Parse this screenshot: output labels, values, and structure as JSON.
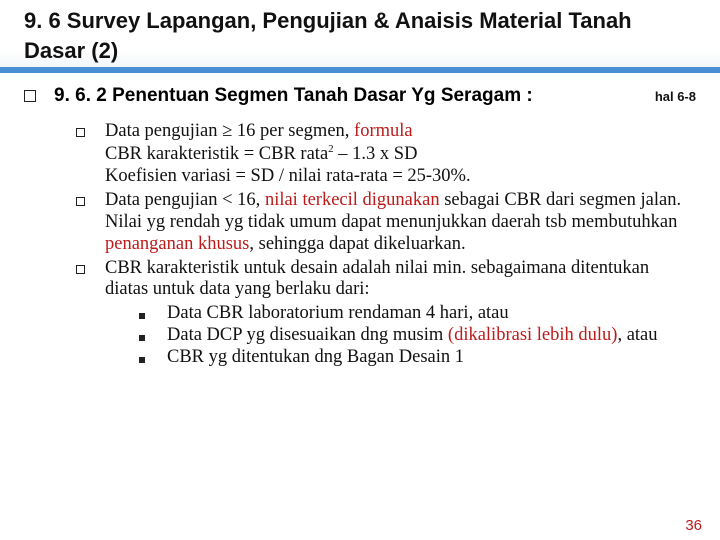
{
  "title": "9. 6 Survey Lapangan, Pengujian & Anaisis Material Tanah Dasar (2)",
  "accent_color": "#4a8fd4",
  "red_color": "#bd1a1a",
  "section": {
    "heading": "9. 6. 2 Penentuan Segmen Tanah Dasar Yg Seragam :",
    "page_ref": "hal 6-8"
  },
  "items": [
    {
      "pre": "Data pengujian ≥ 16 per segmen, ",
      "red1": "formula",
      "line2": "CBR karakteristik = CBR rata",
      "sup": "2",
      "line2b": " – 1.3 x SD",
      "line3": "Koefisien variasi = SD / nilai rata-rata = 25-30%."
    },
    {
      "pre": "Data pengujian < 16, ",
      "red1": "nilai terkecil digunakan",
      "post1": " sebagai CBR dari segmen jalan. Nilai yg rendah yg tidak umum dapat menunjukkan daerah tsb membutuhkan ",
      "red2": "penanganan khusus",
      "post2": ", sehingga dapat dikeluarkan."
    },
    {
      "text": "CBR karakteristik untuk desain adalah nilai min. sebagaimana ditentukan diatas untuk data yang berlaku dari:",
      "sub": [
        {
          "text": "Data CBR laboratorium rendaman 4 hari, atau"
        },
        {
          "pre": "Data DCP yg disesuaikan dng musim ",
          "red": "(dikalibrasi lebih dulu)",
          "post": ", atau"
        },
        {
          "text": "CBR yg ditentukan dng Bagan Desain 1"
        }
      ]
    }
  ],
  "page_number": "36"
}
